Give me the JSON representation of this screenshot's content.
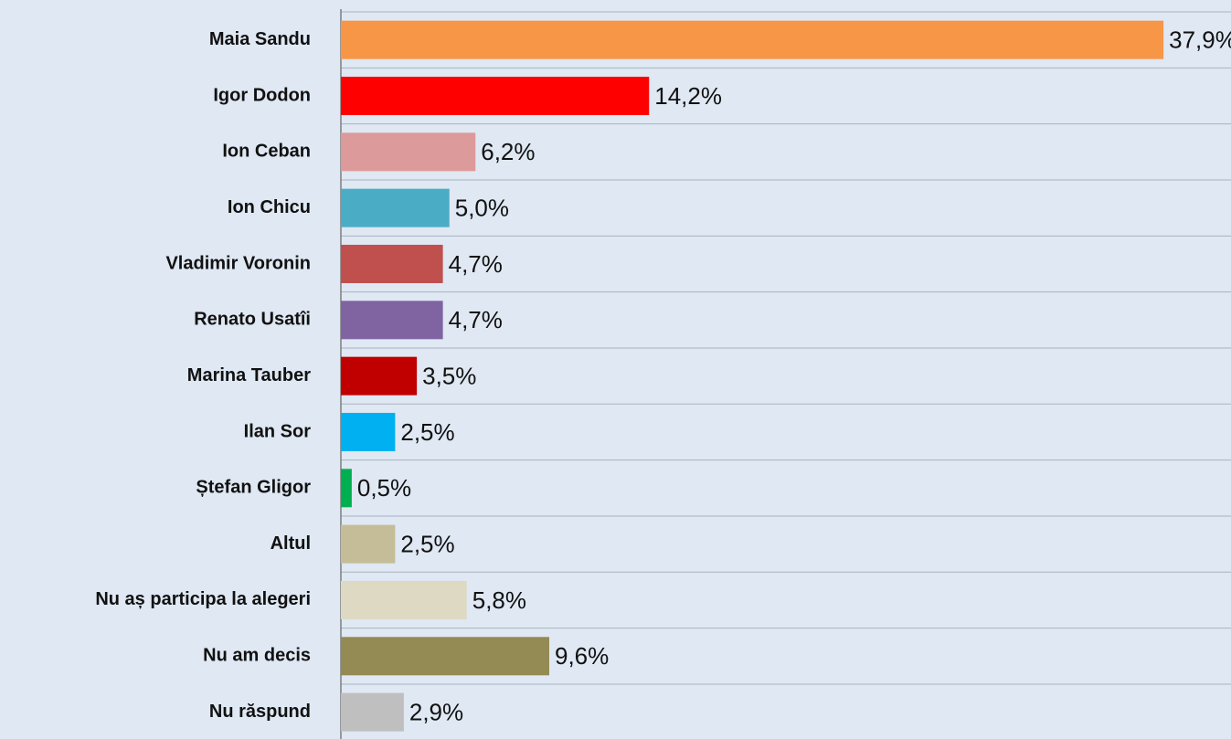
{
  "chart_data": {
    "type": "bar",
    "orientation": "horizontal",
    "categories": [
      "Maia Sandu",
      "Igor Dodon",
      "Ion Ceban",
      "Ion Chicu",
      "Vladimir Voronin",
      "Renato Usatîi",
      "Marina Tauber",
      "Ilan Sor",
      "Ștefan Gligor",
      "Altul",
      "Nu aș participa la alegeri",
      "Nu am decis",
      "Nu răspund"
    ],
    "values": [
      37.9,
      14.2,
      6.2,
      5.0,
      4.7,
      4.7,
      3.5,
      2.5,
      0.5,
      2.5,
      5.8,
      9.6,
      2.9
    ],
    "value_labels": [
      "37,9%",
      "14,2%",
      "6,2%",
      "5,0%",
      "4,7%",
      "4,7%",
      "3,5%",
      "2,5%",
      "0,5%",
      "2,5%",
      "5,8%",
      "9,6%",
      "2,9%"
    ],
    "colors": [
      "#f79646",
      "#ff0000",
      "#dd9a9a",
      "#4bacc6",
      "#c0504d",
      "#8064a2",
      "#c00000",
      "#00b0f0",
      "#00b050",
      "#c4bd97",
      "#ddd9c3",
      "#948a54",
      "#bfbfbf"
    ],
    "xlim": [
      0,
      40
    ]
  }
}
